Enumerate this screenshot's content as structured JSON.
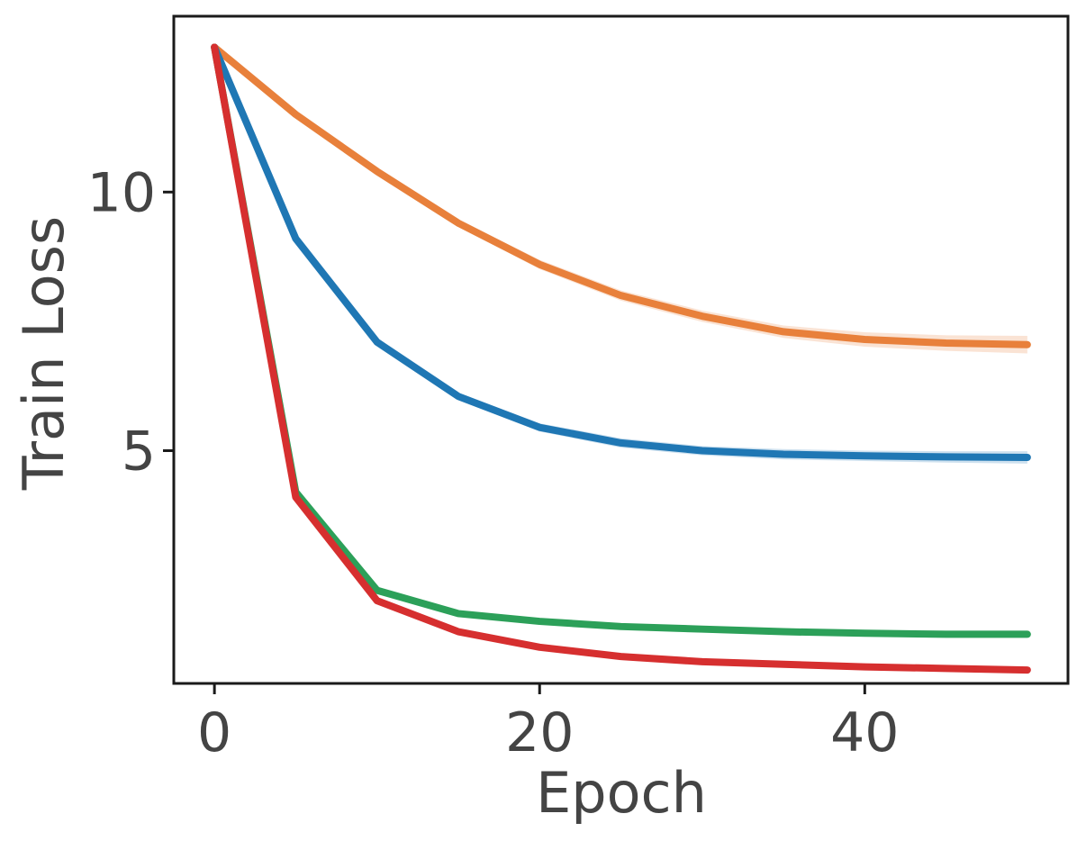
{
  "chart_data": {
    "type": "line",
    "title": "",
    "xlabel": "Epoch",
    "ylabel": "Train Loss",
    "xlim": [
      -2.5,
      52.5
    ],
    "ylim": [
      0.5,
      13.4
    ],
    "xticks": [
      0,
      20,
      40
    ],
    "yticks": [
      5,
      10
    ],
    "grid": false,
    "legend": "none",
    "x": [
      0,
      5,
      10,
      15,
      20,
      25,
      30,
      35,
      40,
      45,
      50
    ],
    "series": [
      {
        "color": "#e8803b",
        "values": [
          12.8,
          11.5,
          10.4,
          9.4,
          8.6,
          8.0,
          7.6,
          7.3,
          7.15,
          7.08,
          7.05
        ],
        "band": [
          0,
          0.03,
          0.05,
          0.07,
          0.09,
          0.1,
          0.11,
          0.12,
          0.14,
          0.15,
          0.17
        ]
      },
      {
        "color": "#1f77b4",
        "values": [
          12.8,
          9.1,
          7.1,
          6.05,
          5.45,
          5.15,
          5.0,
          4.93,
          4.9,
          4.88,
          4.87
        ],
        "band": [
          0,
          0.04,
          0.06,
          0.07,
          0.08,
          0.09,
          0.09,
          0.1,
          0.1,
          0.11,
          0.12
        ]
      },
      {
        "color": "#2ca059",
        "values": [
          12.8,
          4.2,
          2.3,
          1.85,
          1.7,
          1.6,
          1.55,
          1.5,
          1.47,
          1.45,
          1.45
        ],
        "band": [
          0,
          0.03,
          0.04,
          0.04,
          0.05,
          0.05,
          0.05,
          0.06,
          0.06,
          0.07,
          0.07
        ]
      },
      {
        "color": "#d62f2f",
        "values": [
          12.8,
          4.1,
          2.1,
          1.5,
          1.2,
          1.02,
          0.92,
          0.87,
          0.82,
          0.79,
          0.76
        ],
        "band": [
          0,
          0.02,
          0.02,
          0.02,
          0.02,
          0.02,
          0.02,
          0.02,
          0.02,
          0.02,
          0.02
        ]
      }
    ]
  }
}
